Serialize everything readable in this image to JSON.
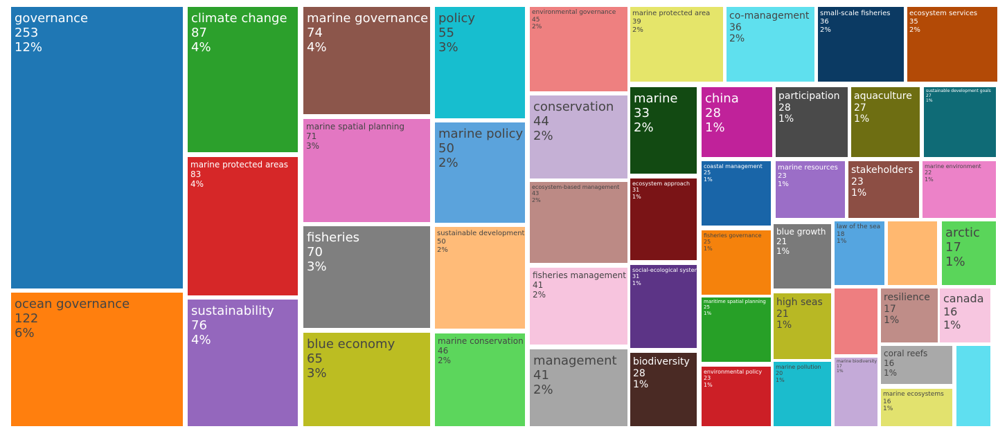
{
  "chart_data": {
    "type": "treemap",
    "title": "",
    "items": [
      {
        "label": "governance",
        "count": "253",
        "percent": "12%",
        "color": "#1f77b4",
        "text_color": "#ffffff"
      },
      {
        "label": "ocean governance",
        "count": "122",
        "percent": "6%",
        "color": "#ff7f0e",
        "text_color": "#444444"
      },
      {
        "label": "climate change",
        "count": "87",
        "percent": "4%",
        "color": "#2ca02c",
        "text_color": "#ffffff"
      },
      {
        "label": "marine protected areas",
        "count": "83",
        "percent": "4%",
        "color": "#d62728",
        "text_color": "#ffffff"
      },
      {
        "label": "sustainability",
        "count": "76",
        "percent": "4%",
        "color": "#9467bd",
        "text_color": "#ffffff"
      },
      {
        "label": "marine governance",
        "count": "74",
        "percent": "4%",
        "color": "#8c564b",
        "text_color": "#ffffff"
      },
      {
        "label": "marine spatial planning",
        "count": "71",
        "percent": "3%",
        "color": "#e377c2",
        "text_color": "#444444"
      },
      {
        "label": "fisheries",
        "count": "70",
        "percent": "3%",
        "color": "#7f7f7f",
        "text_color": "#ffffff"
      },
      {
        "label": "blue economy",
        "count": "65",
        "percent": "3%",
        "color": "#bcbd22",
        "text_color": "#444444"
      },
      {
        "label": "policy",
        "count": "55",
        "percent": "3%",
        "color": "#17becf",
        "text_color": "#444444"
      },
      {
        "label": "marine policy",
        "count": "50",
        "percent": "2%",
        "color": "#5ba3dc",
        "text_color": "#444444"
      },
      {
        "label": "sustainable development",
        "count": "50",
        "percent": "2%",
        "color": "#ffbb78",
        "text_color": "#444444"
      },
      {
        "label": "marine conservation",
        "count": "46",
        "percent": "2%",
        "color": "#5cd65c",
        "text_color": "#444444"
      },
      {
        "label": "environmental governance",
        "count": "45",
        "percent": "2%",
        "color": "#ee8080",
        "text_color": "#444444"
      },
      {
        "label": "conservation",
        "count": "44",
        "percent": "2%",
        "color": "#c5b0d5",
        "text_color": "#444444"
      },
      {
        "label": "ecosystem-based management",
        "count": "43",
        "percent": "2%",
        "color": "#bc8a85",
        "text_color": "#444444"
      },
      {
        "label": "fisheries management",
        "count": "41",
        "percent": "2%",
        "color": "#f7c4de",
        "text_color": "#444444"
      },
      {
        "label": "management",
        "count": "41",
        "percent": "2%",
        "color": "#a6a6a6",
        "text_color": "#444444"
      },
      {
        "label": "marine protected area",
        "count": "39",
        "percent": "2%",
        "color": "#e5e56a",
        "text_color": "#444444"
      },
      {
        "label": "co-management",
        "count": "36",
        "percent": "2%",
        "color": "#5fe0ee",
        "text_color": "#444444"
      },
      {
        "label": "small-scale fisheries",
        "count": "36",
        "percent": "2%",
        "color": "#0b3a63",
        "text_color": "#ffffff"
      },
      {
        "label": "ecosystem services",
        "count": "35",
        "percent": "2%",
        "color": "#b34a06",
        "text_color": "#ffffff"
      },
      {
        "label": "marine",
        "count": "33",
        "percent": "2%",
        "color": "#124a12",
        "text_color": "#ffffff"
      },
      {
        "label": "ecosystem approach",
        "count": "31",
        "percent": "1%",
        "color": "#7a1416",
        "text_color": "#ffffff"
      },
      {
        "label": "social-ecological systems",
        "count": "31",
        "percent": "1%",
        "color": "#5c3486",
        "text_color": "#ffffff"
      },
      {
        "label": "biodiversity",
        "count": "28",
        "percent": "1%",
        "color": "#4a2a24",
        "text_color": "#ffffff"
      },
      {
        "label": "china",
        "count": "28",
        "percent": "1%",
        "color": "#c0229a",
        "text_color": "#ffffff"
      },
      {
        "label": "participation",
        "count": "28",
        "percent": "1%",
        "color": "#4a4a4a",
        "text_color": "#ffffff"
      },
      {
        "label": "aquaculture",
        "count": "27",
        "percent": "1%",
        "color": "#6e6e12",
        "text_color": "#ffffff"
      },
      {
        "label": "sustainable development goals",
        "count": "27",
        "percent": "1%",
        "color": "#0f6b76",
        "text_color": "#ffffff"
      },
      {
        "label": "coastal management",
        "count": "25",
        "percent": "1%",
        "color": "#1965a8",
        "text_color": "#ffffff"
      },
      {
        "label": "fisheries governance",
        "count": "25",
        "percent": "1%",
        "color": "#f5820c",
        "text_color": "#444444"
      },
      {
        "label": "maritime spatial planning",
        "count": "25",
        "percent": "1%",
        "color": "#27a027",
        "text_color": "#ffffff"
      },
      {
        "label": "environmental policy",
        "count": "23",
        "percent": "1%",
        "color": "#cc1f26",
        "text_color": "#ffffff"
      },
      {
        "label": "marine resources",
        "count": "23",
        "percent": "1%",
        "color": "#9b6ec7",
        "text_color": "#ffffff"
      },
      {
        "label": "stakeholders",
        "count": "23",
        "percent": "1%",
        "color": "#8c4e44",
        "text_color": "#ffffff"
      },
      {
        "label": "marine environment",
        "count": "22",
        "percent": "1%",
        "color": "#ec82c8",
        "text_color": "#444444"
      },
      {
        "label": "marine pollution",
        "count": "20",
        "percent": "1%",
        "color": "#1bbccd",
        "text_color": "#444444"
      },
      {
        "label": "blue growth",
        "count": "21",
        "percent": "1%",
        "color": "#7a7a7a",
        "text_color": "#ffffff"
      },
      {
        "label": "high seas",
        "count": "21",
        "percent": "1%",
        "color": "#b8b824",
        "text_color": "#444444"
      },
      {
        "label": "law of the sea",
        "count": "18",
        "percent": "1%",
        "color": "#55a5e0",
        "text_color": "#444444"
      },
      {
        "label": "",
        "count": "",
        "percent": "",
        "color": "#ffb870",
        "text_color": "#444444"
      },
      {
        "label": "arctic",
        "count": "17",
        "percent": "1%",
        "color": "#5ad55a",
        "text_color": "#444444"
      },
      {
        "label": "",
        "count": "",
        "percent": "",
        "color": "#ee7e80",
        "text_color": "#444444"
      },
      {
        "label": "resilience",
        "count": "17",
        "percent": "1%",
        "color": "#bf8d88",
        "text_color": "#444444"
      },
      {
        "label": "canada",
        "count": "16",
        "percent": "1%",
        "color": "#f7c6e0",
        "text_color": "#444444"
      },
      {
        "label": "marine biodiversity",
        "count": "17",
        "percent": "1%",
        "color": "#c4aad8",
        "text_color": "#444444"
      },
      {
        "label": "coral reefs",
        "count": "16",
        "percent": "1%",
        "color": "#a9a9a9",
        "text_color": "#444444"
      },
      {
        "label": "marine ecosystems",
        "count": "16",
        "percent": "1%",
        "color": "#e2e26e",
        "text_color": "#444444"
      },
      {
        "label": "",
        "count": "",
        "percent": "",
        "color": "#5fdff0",
        "text_color": "#444444"
      }
    ]
  }
}
